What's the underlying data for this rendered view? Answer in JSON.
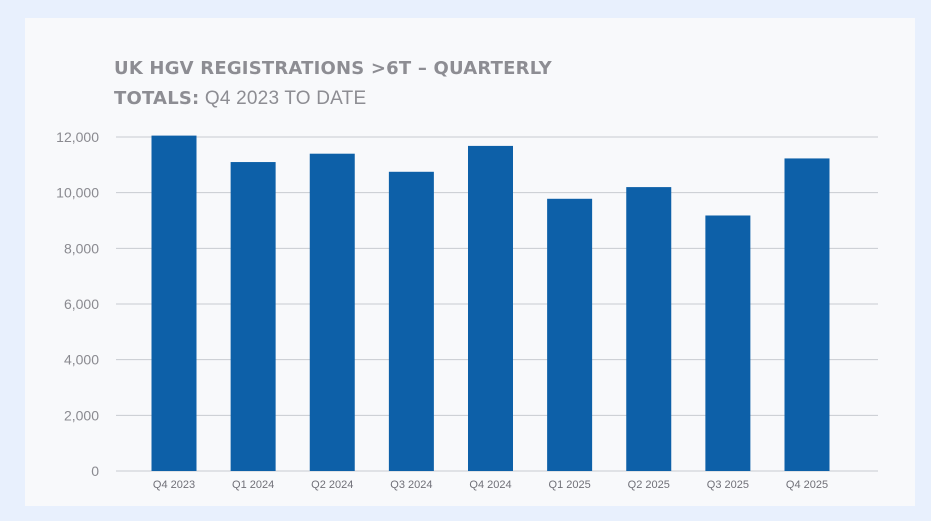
{
  "title": {
    "line1": "UK HGV REGISTRATIONS >6T – QUARTERLY",
    "line2_bold": "TOTALS:",
    "line2_normal": " Q4 2023 TO DATE"
  },
  "colors": {
    "bar": "#0d60a8",
    "grid": "#c9cbd1",
    "page_background": "#e8f0fd",
    "card_background": "#f8f9fb"
  },
  "chart_data": {
    "type": "bar",
    "title": "UK HGV REGISTRATIONS >6T – QUARTERLY TOTALS: Q4 2023 TO DATE",
    "categories": [
      "Q4 2023",
      "Q1 2024",
      "Q2 2024",
      "Q3 2024",
      "Q4 2024",
      "Q1 2025",
      "Q2 2025",
      "Q3 2025",
      "Q4 2025"
    ],
    "values": [
      12050,
      11100,
      11400,
      10750,
      11680,
      9780,
      10200,
      9180,
      11230
    ],
    "xlabel": "",
    "ylabel": "",
    "ylim": [
      0,
      12000
    ],
    "yticks": [
      0,
      2000,
      4000,
      6000,
      8000,
      10000,
      12000
    ],
    "ytick_labels": [
      "0",
      "2,000",
      "4,000",
      "6,000",
      "8,000",
      "10,000",
      "12,000"
    ],
    "grid": true,
    "legend": "none"
  }
}
